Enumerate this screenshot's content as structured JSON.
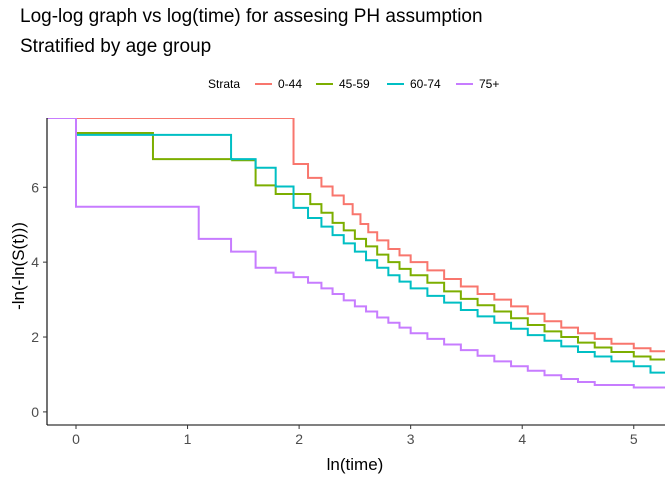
{
  "chart_data": {
    "type": "line",
    "title": "Log-log graph vs log(time) for assesing PH assumption",
    "subtitle": "Stratified by age group",
    "xlabel": "ln(time)",
    "ylabel": "-ln(-ln(S(t)))",
    "xlim": [
      -0.26,
      5.28
    ],
    "ylim": [
      -0.35,
      7.85
    ],
    "x_ticks": [
      0,
      1,
      2,
      3,
      4,
      5
    ],
    "y_ticks": [
      0,
      2,
      4,
      6
    ],
    "grid": false,
    "legend": {
      "title": "Strata",
      "position": "top"
    },
    "series": [
      {
        "name": "0-44",
        "color": "#F8766D",
        "step": true,
        "points": [
          [
            0,
            7.85
          ],
          [
            1.95,
            7.85
          ],
          [
            1.95,
            6.62
          ],
          [
            2.08,
            6.62
          ],
          [
            2.08,
            6.25
          ],
          [
            2.2,
            6.25
          ],
          [
            2.2,
            6.02
          ],
          [
            2.3,
            6.02
          ],
          [
            2.3,
            5.78
          ],
          [
            2.4,
            5.78
          ],
          [
            2.4,
            5.55
          ],
          [
            2.48,
            5.55
          ],
          [
            2.48,
            5.28
          ],
          [
            2.55,
            5.28
          ],
          [
            2.55,
            5.02
          ],
          [
            2.62,
            5.02
          ],
          [
            2.62,
            4.8
          ],
          [
            2.7,
            4.8
          ],
          [
            2.7,
            4.58
          ],
          [
            2.8,
            4.58
          ],
          [
            2.8,
            4.35
          ],
          [
            2.9,
            4.35
          ],
          [
            2.9,
            4.18
          ],
          [
            3.0,
            4.18
          ],
          [
            3.0,
            4.0
          ],
          [
            3.15,
            4.0
          ],
          [
            3.15,
            3.78
          ],
          [
            3.3,
            3.78
          ],
          [
            3.3,
            3.55
          ],
          [
            3.45,
            3.55
          ],
          [
            3.45,
            3.35
          ],
          [
            3.6,
            3.35
          ],
          [
            3.6,
            3.15
          ],
          [
            3.75,
            3.15
          ],
          [
            3.75,
            3.0
          ],
          [
            3.9,
            3.0
          ],
          [
            3.9,
            2.82
          ],
          [
            4.05,
            2.82
          ],
          [
            4.05,
            2.62
          ],
          [
            4.2,
            2.62
          ],
          [
            4.2,
            2.42
          ],
          [
            4.35,
            2.42
          ],
          [
            4.35,
            2.25
          ],
          [
            4.5,
            2.25
          ],
          [
            4.5,
            2.1
          ],
          [
            4.65,
            2.1
          ],
          [
            4.65,
            1.95
          ],
          [
            4.8,
            1.95
          ],
          [
            4.8,
            1.82
          ],
          [
            5.0,
            1.82
          ],
          [
            5.0,
            1.7
          ],
          [
            5.15,
            1.7
          ],
          [
            5.15,
            1.62
          ],
          [
            5.28,
            1.62
          ]
        ]
      },
      {
        "name": "45-59",
        "color": "#7CAE00",
        "step": true,
        "points": [
          [
            0,
            7.45
          ],
          [
            0.69,
            7.45
          ],
          [
            0.69,
            6.75
          ],
          [
            1.4,
            6.75
          ],
          [
            1.4,
            6.72
          ],
          [
            1.61,
            6.72
          ],
          [
            1.61,
            6.05
          ],
          [
            1.79,
            6.05
          ],
          [
            1.79,
            5.82
          ],
          [
            1.95,
            5.82
          ],
          [
            1.95,
            5.82
          ],
          [
            2.1,
            5.82
          ],
          [
            2.1,
            5.55
          ],
          [
            2.2,
            5.55
          ],
          [
            2.2,
            5.32
          ],
          [
            2.3,
            5.32
          ],
          [
            2.3,
            5.05
          ],
          [
            2.4,
            5.05
          ],
          [
            2.4,
            4.85
          ],
          [
            2.5,
            4.85
          ],
          [
            2.5,
            4.62
          ],
          [
            2.6,
            4.62
          ],
          [
            2.6,
            4.42
          ],
          [
            2.7,
            4.42
          ],
          [
            2.7,
            4.2
          ],
          [
            2.8,
            4.2
          ],
          [
            2.8,
            4.0
          ],
          [
            2.9,
            4.0
          ],
          [
            2.9,
            3.82
          ],
          [
            3.0,
            3.82
          ],
          [
            3.0,
            3.65
          ],
          [
            3.15,
            3.65
          ],
          [
            3.15,
            3.45
          ],
          [
            3.3,
            3.45
          ],
          [
            3.3,
            3.22
          ],
          [
            3.45,
            3.22
          ],
          [
            3.45,
            3.02
          ],
          [
            3.6,
            3.02
          ],
          [
            3.6,
            2.85
          ],
          [
            3.75,
            2.85
          ],
          [
            3.75,
            2.68
          ],
          [
            3.9,
            2.68
          ],
          [
            3.9,
            2.5
          ],
          [
            4.05,
            2.5
          ],
          [
            4.05,
            2.32
          ],
          [
            4.2,
            2.32
          ],
          [
            4.2,
            2.15
          ],
          [
            4.35,
            2.15
          ],
          [
            4.35,
            2.0
          ],
          [
            4.5,
            2.0
          ],
          [
            4.5,
            1.85
          ],
          [
            4.65,
            1.85
          ],
          [
            4.65,
            1.72
          ],
          [
            4.8,
            1.72
          ],
          [
            4.8,
            1.6
          ],
          [
            5.0,
            1.6
          ],
          [
            5.0,
            1.48
          ],
          [
            5.15,
            1.48
          ],
          [
            5.15,
            1.4
          ],
          [
            5.28,
            1.4
          ]
        ]
      },
      {
        "name": "60-74",
        "color": "#00BFC4",
        "step": true,
        "points": [
          [
            0,
            7.4
          ],
          [
            1.39,
            7.4
          ],
          [
            1.39,
            6.75
          ],
          [
            1.61,
            6.75
          ],
          [
            1.61,
            6.52
          ],
          [
            1.79,
            6.52
          ],
          [
            1.79,
            6.02
          ],
          [
            1.95,
            6.02
          ],
          [
            1.95,
            5.45
          ],
          [
            2.08,
            5.45
          ],
          [
            2.08,
            5.18
          ],
          [
            2.2,
            5.18
          ],
          [
            2.2,
            4.95
          ],
          [
            2.3,
            4.95
          ],
          [
            2.3,
            4.72
          ],
          [
            2.4,
            4.72
          ],
          [
            2.4,
            4.5
          ],
          [
            2.5,
            4.5
          ],
          [
            2.5,
            4.28
          ],
          [
            2.6,
            4.28
          ],
          [
            2.6,
            4.05
          ],
          [
            2.7,
            4.05
          ],
          [
            2.7,
            3.85
          ],
          [
            2.8,
            3.85
          ],
          [
            2.8,
            3.65
          ],
          [
            2.9,
            3.65
          ],
          [
            2.9,
            3.48
          ],
          [
            3.0,
            3.48
          ],
          [
            3.0,
            3.3
          ],
          [
            3.15,
            3.3
          ],
          [
            3.15,
            3.1
          ],
          [
            3.3,
            3.1
          ],
          [
            3.3,
            2.92
          ],
          [
            3.45,
            2.92
          ],
          [
            3.45,
            2.72
          ],
          [
            3.6,
            2.72
          ],
          [
            3.6,
            2.55
          ],
          [
            3.75,
            2.55
          ],
          [
            3.75,
            2.38
          ],
          [
            3.9,
            2.38
          ],
          [
            3.9,
            2.22
          ],
          [
            4.05,
            2.22
          ],
          [
            4.05,
            2.05
          ],
          [
            4.2,
            2.05
          ],
          [
            4.2,
            1.9
          ],
          [
            4.35,
            1.9
          ],
          [
            4.35,
            1.75
          ],
          [
            4.5,
            1.75
          ],
          [
            4.5,
            1.6
          ],
          [
            4.65,
            1.6
          ],
          [
            4.65,
            1.48
          ],
          [
            4.8,
            1.48
          ],
          [
            4.8,
            1.35
          ],
          [
            5.0,
            1.35
          ],
          [
            5.0,
            1.22
          ],
          [
            5.15,
            1.22
          ],
          [
            5.15,
            1.05
          ],
          [
            5.28,
            1.05
          ]
        ]
      },
      {
        "name": "75+",
        "color": "#C77CFF",
        "step": true,
        "points": [
          [
            -0.26,
            7.85
          ],
          [
            0,
            7.85
          ],
          [
            0,
            5.48
          ],
          [
            1.1,
            5.48
          ],
          [
            1.1,
            4.62
          ],
          [
            1.39,
            4.62
          ],
          [
            1.39,
            4.28
          ],
          [
            1.61,
            4.28
          ],
          [
            1.61,
            3.85
          ],
          [
            1.79,
            3.85
          ],
          [
            1.79,
            3.72
          ],
          [
            1.95,
            3.72
          ],
          [
            1.95,
            3.6
          ],
          [
            2.08,
            3.6
          ],
          [
            2.08,
            3.45
          ],
          [
            2.2,
            3.45
          ],
          [
            2.2,
            3.3
          ],
          [
            2.3,
            3.3
          ],
          [
            2.3,
            3.15
          ],
          [
            2.4,
            3.15
          ],
          [
            2.4,
            2.98
          ],
          [
            2.5,
            2.98
          ],
          [
            2.5,
            2.82
          ],
          [
            2.6,
            2.82
          ],
          [
            2.6,
            2.68
          ],
          [
            2.7,
            2.68
          ],
          [
            2.7,
            2.52
          ],
          [
            2.8,
            2.52
          ],
          [
            2.8,
            2.38
          ],
          [
            2.9,
            2.38
          ],
          [
            2.9,
            2.25
          ],
          [
            3.0,
            2.25
          ],
          [
            3.0,
            2.1
          ],
          [
            3.15,
            2.1
          ],
          [
            3.15,
            1.95
          ],
          [
            3.3,
            1.95
          ],
          [
            3.3,
            1.8
          ],
          [
            3.45,
            1.8
          ],
          [
            3.45,
            1.65
          ],
          [
            3.6,
            1.65
          ],
          [
            3.6,
            1.5
          ],
          [
            3.75,
            1.5
          ],
          [
            3.75,
            1.35
          ],
          [
            3.9,
            1.35
          ],
          [
            3.9,
            1.22
          ],
          [
            4.05,
            1.22
          ],
          [
            4.05,
            1.1
          ],
          [
            4.2,
            1.1
          ],
          [
            4.2,
            0.98
          ],
          [
            4.35,
            0.98
          ],
          [
            4.35,
            0.88
          ],
          [
            4.5,
            0.88
          ],
          [
            4.5,
            0.8
          ],
          [
            4.65,
            0.8
          ],
          [
            4.65,
            0.72
          ],
          [
            5.0,
            0.72
          ],
          [
            5.0,
            0.65
          ],
          [
            5.28,
            0.65
          ]
        ]
      }
    ]
  }
}
